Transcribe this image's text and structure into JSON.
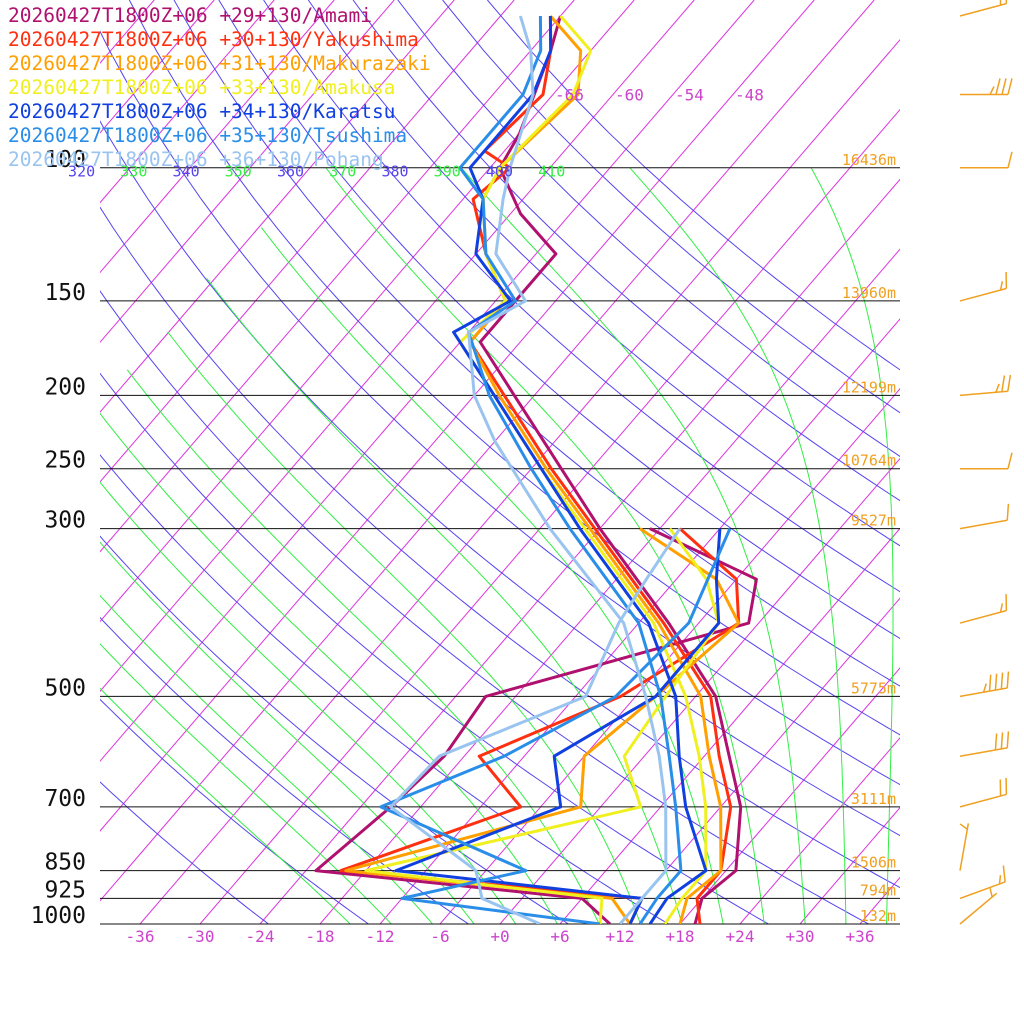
{
  "chart_data": {
    "type": "line",
    "title": "",
    "xlabel": "",
    "ylabel": "",
    "pressure_ticks": [
      "100",
      "150",
      "200",
      "250",
      "300",
      "500",
      "700",
      "850",
      "925",
      "1000"
    ],
    "temperature_ticks": [
      "-36",
      "-30",
      "-24",
      "-18",
      "-12",
      "-6",
      "+0",
      "+6",
      "+12",
      "+18",
      "+24",
      "+30",
      "+36"
    ],
    "xlim": [
      -40,
      40
    ],
    "ylim_hpa": [
      1000,
      100
    ],
    "top_pressure_hpa": 60,
    "skew_deg_per_log10": 65,
    "isotherm_labels": [
      "-66",
      "-60",
      "-54",
      "-48"
    ],
    "theta_labels": [
      "320",
      "330",
      "340",
      "350",
      "360",
      "370",
      "380",
      "390",
      "400",
      "410"
    ],
    "height_labels": [
      {
        "p": 100,
        "text": "16436m"
      },
      {
        "p": 150,
        "text": "13960m"
      },
      {
        "p": 200,
        "text": "12199m"
      },
      {
        "p": 250,
        "text": "10764m"
      },
      {
        "p": 300,
        "text": "9527m"
      },
      {
        "p": 500,
        "text": "5775m"
      },
      {
        "p": 700,
        "text": "3111m"
      },
      {
        "p": 850,
        "text": "1506m"
      },
      {
        "p": 925,
        "text": "794m"
      },
      {
        "p": 1000,
        "text": "132m"
      }
    ],
    "colors": {
      "isotherm": "#dd33dd",
      "dry_adiabat": "#5544ee",
      "moist_adiabat": "#33ee44",
      "isobar": "#111111",
      "tick_label": "#cc44cc",
      "height_label": "#f0a020",
      "wind_barb": "#f0a020",
      "pressure_label": "#111111"
    },
    "legend_placement": "top-left",
    "series": [
      {
        "name": "20260427T1800Z+06 +29+130/Amami",
        "color": "#b0106e",
        "temperature": [
          [
            1000,
            19.5
          ],
          [
            925,
            18
          ],
          [
            850,
            19
          ],
          [
            700,
            14
          ],
          [
            600,
            8.5
          ],
          [
            500,
            2
          ],
          [
            400,
            -9
          ],
          [
            300,
            -24
          ],
          [
            250,
            -33
          ],
          [
            200,
            -44
          ],
          [
            170,
            -52
          ],
          [
            150,
            -52
          ],
          [
            130,
            -52
          ],
          [
            115,
            -59
          ],
          [
            100,
            -65
          ],
          [
            90,
            -66
          ],
          [
            70,
            -70
          ],
          [
            63,
            -72
          ]
        ],
        "dewpoint": [
          [
            1000,
            11
          ],
          [
            925,
            6
          ],
          [
            850,
            -23
          ],
          [
            700,
            -21
          ],
          [
            600,
            -20
          ],
          [
            500,
            -21
          ],
          [
            400,
            -1
          ],
          [
            350,
            -4
          ],
          [
            300,
            -19
          ]
        ]
      },
      {
        "name": "20260427T1800Z+06 +30+130/Yakushima",
        "color": "#ff3010",
        "temperature": [
          [
            1000,
            20
          ],
          [
            925,
            17.5
          ],
          [
            850,
            17.5
          ],
          [
            700,
            13
          ],
          [
            600,
            7.5
          ],
          [
            500,
            1.5
          ],
          [
            400,
            -9.5
          ],
          [
            300,
            -24.5
          ],
          [
            250,
            -34
          ],
          [
            200,
            -45
          ],
          [
            170,
            -53
          ],
          [
            150,
            -53
          ],
          [
            130,
            -59
          ],
          [
            110,
            -65
          ],
          [
            100,
            -64
          ],
          [
            95,
            -68
          ],
          [
            80,
            -67
          ],
          [
            70,
            -70
          ],
          [
            63,
            -73
          ]
        ],
        "dewpoint": [
          [
            1000,
            13
          ],
          [
            925,
            12
          ],
          [
            850,
            -20.5
          ],
          [
            700,
            -8
          ],
          [
            600,
            -16.5
          ],
          [
            500,
            -7.5
          ],
          [
            400,
            -2
          ],
          [
            350,
            -6
          ],
          [
            300,
            -16
          ]
        ]
      },
      {
        "name": "20260427T1800Z+06 +31+130/Makurazaki",
        "color": "#ffa000",
        "temperature": [
          [
            1000,
            18
          ],
          [
            925,
            16.5
          ],
          [
            850,
            17.5
          ],
          [
            700,
            12
          ],
          [
            600,
            6.5
          ],
          [
            500,
            0.5
          ],
          [
            400,
            -10
          ],
          [
            300,
            -25
          ],
          [
            250,
            -34.5
          ],
          [
            200,
            -45.5
          ],
          [
            170,
            -53
          ],
          [
            150,
            -53
          ],
          [
            130,
            -59
          ],
          [
            110,
            -64
          ],
          [
            100,
            -65
          ],
          [
            80,
            -63.5
          ],
          [
            70,
            -67
          ],
          [
            63,
            -73
          ]
        ],
        "dewpoint": [
          [
            1000,
            13
          ],
          [
            925,
            9
          ],
          [
            850,
            -20
          ],
          [
            700,
            -2
          ],
          [
            600,
            -6
          ],
          [
            500,
            -4
          ],
          [
            400,
            -2
          ],
          [
            350,
            -8
          ],
          [
            300,
            -20
          ]
        ]
      },
      {
        "name": "20260427T1800Z+06 +33+130/Amakusa",
        "color": "#f0f020",
        "temperature": [
          [
            1000,
            16.5
          ],
          [
            925,
            16
          ],
          [
            850,
            16
          ],
          [
            700,
            10.5
          ],
          [
            600,
            5.5
          ],
          [
            500,
            -1
          ],
          [
            400,
            -10.5
          ],
          [
            300,
            -25.5
          ],
          [
            250,
            -35
          ],
          [
            200,
            -46
          ],
          [
            170,
            -54
          ],
          [
            150,
            -53
          ],
          [
            130,
            -59
          ],
          [
            110,
            -64
          ],
          [
            100,
            -65
          ],
          [
            80,
            -64
          ],
          [
            70,
            -66
          ],
          [
            63,
            -72
          ]
        ],
        "dewpoint": [
          [
            1000,
            10
          ],
          [
            925,
            8
          ],
          [
            850,
            -18
          ],
          [
            700,
            4
          ],
          [
            600,
            -2
          ],
          [
            500,
            -3
          ],
          [
            400,
            -4
          ],
          [
            350,
            -9
          ],
          [
            300,
            -17
          ]
        ]
      },
      {
        "name": "20260427T1800Z+06 +34+130/Karatsu",
        "color": "#1040e0",
        "temperature": [
          [
            1000,
            15
          ],
          [
            925,
            14.5
          ],
          [
            850,
            16
          ],
          [
            700,
            8.5
          ],
          [
            600,
            3.5
          ],
          [
            500,
            -2
          ],
          [
            400,
            -11
          ],
          [
            300,
            -26
          ],
          [
            250,
            -35
          ],
          [
            200,
            -46
          ],
          [
            165,
            -55.5
          ],
          [
            150,
            -52.5
          ],
          [
            130,
            -60
          ],
          [
            110,
            -64
          ],
          [
            100,
            -68
          ],
          [
            80,
            -68
          ],
          [
            70,
            -70
          ],
          [
            63,
            -73
          ]
        ],
        "dewpoint": [
          [
            1000,
            13
          ],
          [
            925,
            12
          ],
          [
            850,
            -15
          ],
          [
            700,
            -4
          ],
          [
            600,
            -9
          ],
          [
            500,
            -4
          ],
          [
            400,
            -4
          ],
          [
            350,
            -8
          ],
          [
            300,
            -12
          ]
        ]
      },
      {
        "name": "20260427T1800Z+06 +35+130/Tsushima",
        "color": "#2a8ee8",
        "temperature": [
          [
            1000,
            14
          ],
          [
            925,
            13.5
          ],
          [
            850,
            13.5
          ],
          [
            700,
            7.5
          ],
          [
            600,
            2.5
          ],
          [
            500,
            -3.5
          ],
          [
            400,
            -12
          ],
          [
            300,
            -27
          ],
          [
            250,
            -36
          ],
          [
            200,
            -46.5
          ],
          [
            165,
            -54
          ],
          [
            150,
            -52
          ],
          [
            130,
            -59
          ],
          [
            110,
            -64
          ],
          [
            100,
            -69
          ],
          [
            80,
            -69
          ],
          [
            70,
            -71
          ],
          [
            63,
            -74
          ]
        ],
        "dewpoint": [
          [
            1000,
            10
          ],
          [
            925,
            -12
          ],
          [
            850,
            -2
          ],
          [
            700,
            -22
          ],
          [
            600,
            -14
          ],
          [
            500,
            -8
          ],
          [
            400,
            -7
          ],
          [
            300,
            -11
          ]
        ]
      },
      {
        "name": "20260427T1800Z+06 +36+130/Pohang",
        "color": "#9ac4f0",
        "temperature": [
          [
            1000,
            12
          ],
          [
            925,
            12
          ],
          [
            850,
            12
          ],
          [
            700,
            6.5
          ],
          [
            600,
            1.5
          ],
          [
            500,
            -5
          ],
          [
            400,
            -13.5
          ],
          [
            300,
            -29
          ],
          [
            230,
            -42
          ],
          [
            200,
            -48
          ],
          [
            165,
            -54
          ],
          [
            150,
            -51
          ],
          [
            130,
            -58
          ],
          [
            110,
            -62
          ],
          [
            100,
            -64
          ],
          [
            80,
            -68
          ],
          [
            70,
            -72
          ],
          [
            63,
            -76
          ]
        ],
        "dewpoint": [
          [
            1000,
            4
          ],
          [
            925,
            -4
          ],
          [
            850,
            -7
          ],
          [
            700,
            -21
          ],
          [
            600,
            -20.5
          ],
          [
            500,
            -11
          ],
          [
            400,
            -14
          ],
          [
            350,
            -15
          ],
          [
            300,
            -16
          ]
        ]
      }
    ],
    "wind_barbs": [
      {
        "p": 63,
        "dir": 255,
        "speed": 20
      },
      {
        "p": 80,
        "dir": 270,
        "speed": 35
      },
      {
        "p": 100,
        "dir": 270,
        "speed": 10
      },
      {
        "p": 150,
        "dir": 255,
        "speed": 15
      },
      {
        "p": 200,
        "dir": 265,
        "speed": 25
      },
      {
        "p": 250,
        "dir": 270,
        "speed": 10
      },
      {
        "p": 300,
        "dir": 260,
        "speed": 10
      },
      {
        "p": 400,
        "dir": 255,
        "speed": 15
      },
      {
        "p": 500,
        "dir": 260,
        "speed": 45
      },
      {
        "p": 600,
        "dir": 260,
        "speed": 30
      },
      {
        "p": 700,
        "dir": 255,
        "speed": 20
      },
      {
        "p": 850,
        "dir": 190,
        "speed": 5
      },
      {
        "p": 925,
        "dir": 250,
        "speed": 15
      },
      {
        "p": 1000,
        "dir": 230,
        "speed": 5
      }
    ]
  }
}
